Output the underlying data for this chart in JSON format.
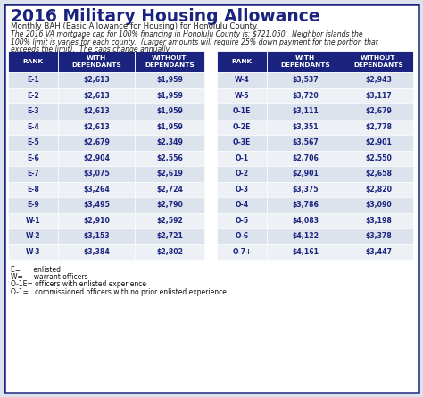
{
  "title": "2016 Military Housing Allowance",
  "subtitle": "Monthly BAH (Basic Allowance for Housing) for Honolulu County.",
  "note": "The 2016 VA mortgage cap for 100% financing in Honolulu County is: $721,050.  Neighbor islands the\n100% limit is varies for each county.  (Larger amounts will require 25% down payment for the portion that\nexceeds the limit).  The caps change annually.",
  "header_bg": "#1a237e",
  "header_text": "#ffffff",
  "row_odd_bg": "#dde3ed",
  "row_even_bg": "#edf0f5",
  "cell_text": "#1a237e",
  "outer_border": "#1a237e",
  "bg_color": "#dde3ed",
  "white_bg": "#ffffff",
  "left_table": {
    "headers": [
      "RANK",
      "WITH\nDEPENDANTS",
      "WITHOUT\nDEPENDANTS"
    ],
    "rows": [
      [
        "E-1",
        "$2,613",
        "$1,959"
      ],
      [
        "E-2",
        "$2,613",
        "$1,959"
      ],
      [
        "E-3",
        "$2,613",
        "$1,959"
      ],
      [
        "E-4",
        "$2,613",
        "$1,959"
      ],
      [
        "E-5",
        "$2,679",
        "$2,349"
      ],
      [
        "E-6",
        "$2,904",
        "$2,556"
      ],
      [
        "E-7",
        "$3,075",
        "$2,619"
      ],
      [
        "E-8",
        "$3,264",
        "$2,724"
      ],
      [
        "E-9",
        "$3,495",
        "$2,790"
      ],
      [
        "W-1",
        "$2,910",
        "$2,592"
      ],
      [
        "W-2",
        "$3,153",
        "$2,721"
      ],
      [
        "W-3",
        "$3,384",
        "$2,802"
      ]
    ]
  },
  "right_table": {
    "headers": [
      "RANK",
      "WITH\nDEPENDANTS",
      "WITHOUT\nDEPENDANTS"
    ],
    "rows": [
      [
        "W-4",
        "$3,537",
        "$2,943"
      ],
      [
        "W-5",
        "$3,720",
        "$3,117"
      ],
      [
        "O-1E",
        "$3,111",
        "$2,679"
      ],
      [
        "O-2E",
        "$3,351",
        "$2,778"
      ],
      [
        "O-3E",
        "$3,567",
        "$2,901"
      ],
      [
        "O-1",
        "$2,706",
        "$2,550"
      ],
      [
        "O-2",
        "$2,901",
        "$2,658"
      ],
      [
        "O-3",
        "$3,375",
        "$2,820"
      ],
      [
        "O-4",
        "$3,786",
        "$3,090"
      ],
      [
        "O-5",
        "$4,083",
        "$3,198"
      ],
      [
        "O-6",
        "$4,122",
        "$3,378"
      ],
      [
        "O-7+",
        "$4,161",
        "$3,447"
      ]
    ]
  },
  "footnotes": [
    "E=      enlisted",
    "W=     warrant officers",
    "O-1E= officers with enlisted experience",
    "O-1=   commissioned officers with no prior enlisted experience"
  ]
}
